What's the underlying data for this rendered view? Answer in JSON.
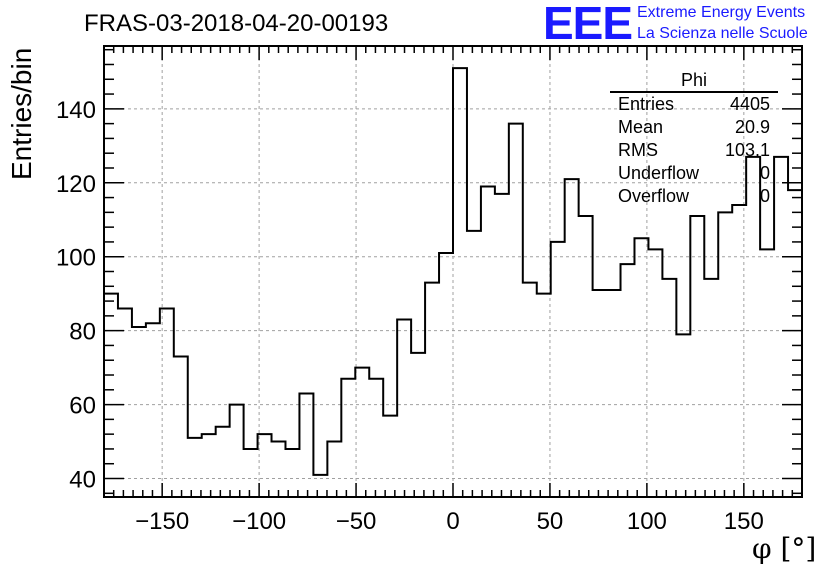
{
  "page": {
    "title": "FRAS-03-2018-04-20-00193",
    "logo": {
      "mark": "EEE",
      "line1": "Extreme Energy Events",
      "line2": "La Scienza nelle Scuole"
    }
  },
  "stats_box": {
    "title": "Phi",
    "rows": [
      {
        "name": "Entries",
        "value": "4405"
      },
      {
        "name": "Mean",
        "value": "20.9"
      },
      {
        "name": "RMS",
        "value": "103.1"
      },
      {
        "name": "Underflow",
        "value": "0"
      },
      {
        "name": "Overflow",
        "value": "0"
      }
    ]
  },
  "chart_data": {
    "type": "histogram",
    "title": "FRAS-03-2018-04-20-00193",
    "xlabel": "φ [°]",
    "ylabel": "Entries/bin",
    "xlim": [
      -180,
      180
    ],
    "ylim": [
      35,
      157
    ],
    "bin_width": 7.2,
    "x_ticks": [
      -150,
      -100,
      -50,
      0,
      50,
      100,
      150
    ],
    "x_tick_labels": [
      "−150",
      "−100",
      "−50",
      "0",
      "50",
      "100",
      "150"
    ],
    "y_ticks": [
      40,
      60,
      80,
      100,
      120,
      140
    ],
    "y_tick_labels": [
      "40",
      "60",
      "80",
      "100",
      "120",
      "140"
    ],
    "grid": true,
    "line_color": "#000000",
    "values": [
      90,
      86,
      81,
      82,
      86,
      73,
      51,
      52,
      54,
      60,
      48,
      52,
      50,
      48,
      63,
      41,
      50,
      67,
      70,
      67,
      57,
      83,
      74,
      93,
      101,
      151,
      107,
      119,
      117,
      136,
      93,
      90,
      104,
      121,
      111,
      91,
      91,
      98,
      105,
      102,
      94,
      79,
      111,
      94,
      112,
      114,
      127,
      102,
      127,
      118
    ]
  }
}
